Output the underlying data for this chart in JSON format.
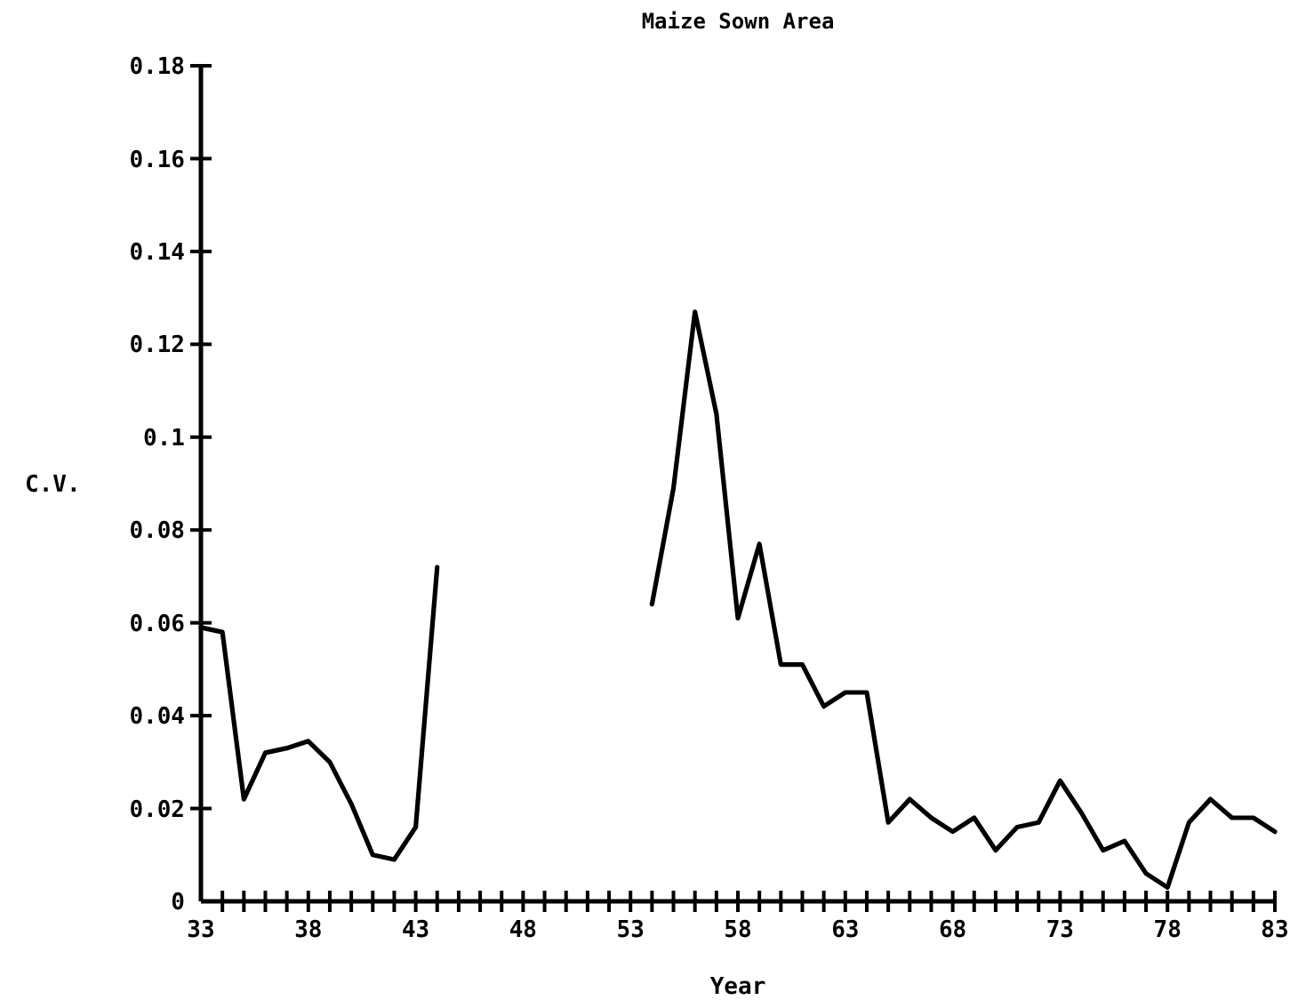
{
  "chart_data": {
    "type": "line",
    "title": "Maize Sown Area",
    "xlabel": "Year",
    "ylabel": "C.V.",
    "x": [
      33,
      34,
      35,
      36,
      37,
      38,
      39,
      40,
      41,
      42,
      43,
      44,
      45,
      46,
      47,
      48,
      49,
      50,
      51,
      52,
      53,
      54,
      55,
      56,
      57,
      58,
      59,
      60,
      61,
      62,
      63,
      64,
      65,
      66,
      67,
      68,
      69,
      70,
      71,
      72,
      73,
      74,
      75,
      76,
      77,
      78,
      79,
      80,
      81,
      82,
      83
    ],
    "series": [
      {
        "color": "#000000",
        "values": [
          0.059,
          0.058,
          0.022,
          0.032,
          0.033,
          0.0345,
          0.03,
          0.021,
          0.01,
          0.009,
          0.016,
          0.072,
          null,
          null,
          null,
          null,
          null,
          null,
          null,
          null,
          null,
          0.064,
          0.089,
          0.127,
          0.105,
          0.061,
          0.077,
          0.051,
          0.051,
          0.042,
          0.045,
          0.045,
          0.017,
          0.022,
          0.018,
          0.015,
          0.018,
          0.011,
          0.016,
          0.017,
          0.026,
          0.019,
          0.011,
          0.013,
          0.006,
          0.003,
          0.017,
          0.022,
          0.018,
          0.018,
          0.015
        ]
      }
    ],
    "xlim": [
      33,
      83
    ],
    "xticks": [
      33,
      {
        "value": 34,
        "label": null
      },
      {
        "value": 35,
        "label": null
      },
      {
        "value": 36,
        "label": null
      },
      {
        "value": 37,
        "label": null
      },
      38,
      {
        "value": 39,
        "label": null
      },
      {
        "value": 40,
        "label": null
      },
      {
        "value": 41,
        "label": null
      },
      {
        "value": 42,
        "label": null
      },
      43,
      {
        "value": 44,
        "label": null
      },
      {
        "value": 45,
        "label": null
      },
      {
        "value": 46,
        "label": null
      },
      {
        "value": 47,
        "label": null
      },
      48,
      {
        "value": 49,
        "label": null
      },
      {
        "value": 50,
        "label": null
      },
      {
        "value": 51,
        "label": null
      },
      {
        "value": 52,
        "label": null
      },
      53,
      {
        "value": 54,
        "label": null
      },
      {
        "value": 55,
        "label": null
      },
      {
        "value": 56,
        "label": null
      },
      {
        "value": 57,
        "label": null
      },
      58,
      {
        "value": 59,
        "label": null
      },
      {
        "value": 60,
        "label": null
      },
      {
        "value": 61,
        "label": null
      },
      {
        "value": 62,
        "label": null
      },
      63,
      {
        "value": 64,
        "label": null
      },
      {
        "value": 65,
        "label": null
      },
      {
        "value": 66,
        "label": null
      },
      {
        "value": 67,
        "label": null
      },
      68,
      {
        "value": 69,
        "label": null
      },
      {
        "value": 70,
        "label": null
      },
      {
        "value": 71,
        "label": null
      },
      {
        "value": 72,
        "label": null
      },
      73,
      {
        "value": 74,
        "label": null
      },
      {
        "value": 75,
        "label": null
      },
      {
        "value": 76,
        "label": null
      },
      {
        "value": 77,
        "label": null
      },
      78,
      {
        "value": 79,
        "label": null
      },
      {
        "value": 80,
        "label": null
      },
      {
        "value": 81,
        "label": null
      },
      {
        "value": 82,
        "label": null
      },
      83
    ],
    "ylim": [
      0,
      0.18
    ],
    "yticks": [
      0,
      0.02,
      0.04,
      0.06,
      0.08,
      0.1,
      0.12,
      0.14,
      0.16,
      0.18
    ],
    "grid": false,
    "marker": "none",
    "line_style": "solid"
  }
}
